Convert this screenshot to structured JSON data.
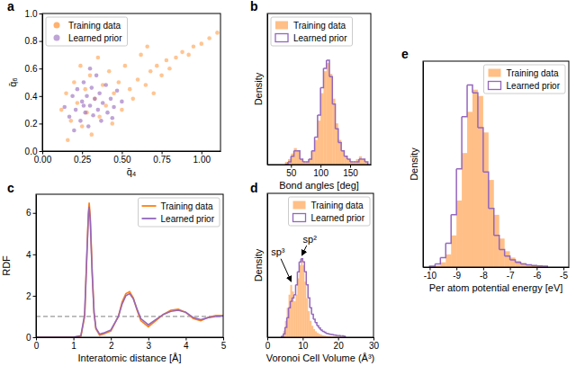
{
  "chart_data": [
    {
      "title": "a",
      "type": "scatter",
      "xlabel": "q̄₄",
      "ylabel": "q̄₆",
      "xlim": [
        0,
        1.12
      ],
      "ylim": [
        0,
        1.0
      ],
      "xticks": [
        {
          "value": 0,
          "label": "0.00"
        },
        0.25,
        {
          "value": 0.5,
          "label": "0.50"
        },
        0.75,
        {
          "value": 1,
          "label": "1.00"
        }
      ],
      "yticks": [
        {
          "value": 0,
          "label": "0.0"
        },
        0.2,
        0.4,
        0.6,
        0.8,
        {
          "value": 1,
          "label": "1.0"
        }
      ],
      "legend": "upper left",
      "series": [
        {
          "name": "Training data",
          "color": "#ff7f0e",
          "x": [
            0.12,
            0.15,
            0.18,
            0.2,
            0.22,
            0.24,
            0.25,
            0.27,
            0.28,
            0.3,
            0.31,
            0.33,
            0.35,
            0.36,
            0.38,
            0.4,
            0.42,
            0.44,
            0.45,
            0.48,
            0.5,
            0.52,
            0.55,
            0.57,
            0.6,
            0.62,
            0.65,
            0.68,
            0.7,
            0.72,
            0.75,
            0.78,
            0.8,
            0.84,
            0.88,
            0.92,
            0.95,
            1.0,
            1.05,
            1.1,
            0.16,
            0.66
          ],
          "values": [
            0.3,
            0.42,
            0.22,
            0.5,
            0.35,
            0.62,
            0.18,
            0.45,
            0.28,
            0.55,
            0.12,
            0.38,
            0.68,
            0.25,
            0.48,
            0.33,
            0.58,
            0.2,
            0.42,
            0.5,
            0.3,
            0.62,
            0.45,
            0.38,
            0.52,
            0.7,
            0.48,
            0.58,
            0.42,
            0.62,
            0.55,
            0.66,
            0.6,
            0.68,
            0.72,
            0.7,
            0.76,
            0.78,
            0.82,
            0.86,
            0.08,
            0.76
          ]
        },
        {
          "name": "Learned prior",
          "color": "#9467bd",
          "x": [
            0.14,
            0.17,
            0.19,
            0.21,
            0.22,
            0.24,
            0.25,
            0.26,
            0.27,
            0.28,
            0.29,
            0.3,
            0.31,
            0.32,
            0.33,
            0.34,
            0.35,
            0.36,
            0.37,
            0.38,
            0.4,
            0.41,
            0.43,
            0.45,
            0.47,
            0.5,
            0.2,
            0.3,
            0.44,
            0.26
          ],
          "values": [
            0.32,
            0.25,
            0.4,
            0.3,
            0.45,
            0.22,
            0.36,
            0.5,
            0.28,
            0.4,
            0.18,
            0.33,
            0.46,
            0.26,
            0.38,
            0.55,
            0.3,
            0.42,
            0.22,
            0.35,
            0.48,
            0.28,
            0.38,
            0.32,
            0.44,
            0.36,
            0.15,
            0.6,
            0.24,
            0.33
          ]
        }
      ]
    },
    {
      "title": "b",
      "type": "histogram",
      "xlabel": "Bond angles [deg]",
      "ylabel": "Density",
      "xlim": [
        10,
        185
      ],
      "ylim": [
        0,
        0.055
      ],
      "xticks": [
        50,
        100,
        150
      ],
      "tick_labels": "x",
      "legend": "upper left",
      "bins": [
        40,
        45,
        50,
        55,
        60,
        65,
        70,
        75,
        80,
        85,
        90,
        95,
        100,
        105,
        110,
        115,
        120,
        125,
        130,
        135,
        140,
        145,
        150,
        155,
        160,
        165,
        170,
        175,
        180
      ],
      "series": [
        {
          "name": "Training data",
          "color": "#ff7f0e",
          "type": "bar",
          "values": [
            0.001,
            0.002,
            0.004,
            0.006,
            0.005,
            0.002,
            0.001,
            0.001,
            0.002,
            0.005,
            0.009,
            0.016,
            0.026,
            0.034,
            0.037,
            0.033,
            0.024,
            0.015,
            0.009,
            0.005,
            0.003,
            0.002,
            0.001,
            0.001,
            0.002,
            0.003,
            0.002,
            0.001
          ]
        },
        {
          "name": "Learned prior",
          "color": "#9467bd",
          "type": "step",
          "values": [
            0.0,
            0.001,
            0.003,
            0.005,
            0.005,
            0.002,
            0.001,
            0.001,
            0.002,
            0.005,
            0.01,
            0.018,
            0.028,
            0.035,
            0.038,
            0.032,
            0.022,
            0.013,
            0.008,
            0.005,
            0.003,
            0.002,
            0.001,
            0.001,
            0.001,
            0.002,
            0.002,
            0.001
          ]
        }
      ]
    },
    {
      "title": "c",
      "type": "line",
      "xlabel": "Interatomic distance [Å]",
      "ylabel": "RDF",
      "xlim": [
        0,
        5
      ],
      "ylim": [
        0,
        6.9
      ],
      "xticks": [
        0,
        1,
        2,
        3,
        4,
        5
      ],
      "yticks": [
        0,
        2,
        4,
        6
      ],
      "reference_line": 1,
      "legend": "upper right",
      "x": [
        0,
        0.5,
        1.0,
        1.2,
        1.3,
        1.35,
        1.4,
        1.42,
        1.45,
        1.5,
        1.55,
        1.6,
        1.7,
        1.8,
        2.0,
        2.2,
        2.3,
        2.4,
        2.5,
        2.6,
        2.7,
        2.8,
        3.0,
        3.2,
        3.4,
        3.6,
        3.8,
        4.0,
        4.2,
        4.4,
        4.6,
        4.8,
        5.0
      ],
      "series": [
        {
          "name": "Training data",
          "color": "#ff7f0e",
          "values": [
            0,
            0,
            0,
            0.05,
            1.0,
            3.5,
            6.0,
            6.5,
            5.8,
            3.2,
            1.2,
            0.4,
            0.1,
            0.15,
            0.3,
            1.0,
            1.7,
            2.1,
            2.2,
            1.9,
            1.3,
            0.8,
            0.5,
            0.8,
            1.1,
            1.3,
            1.35,
            1.2,
            0.9,
            0.8,
            0.95,
            1.05,
            1.05
          ]
        },
        {
          "name": "Learned prior",
          "color": "#9467bd",
          "values": [
            0,
            0,
            0,
            0.08,
            1.1,
            3.6,
            5.9,
            6.3,
            5.6,
            3.1,
            1.2,
            0.45,
            0.15,
            0.2,
            0.35,
            1.0,
            1.6,
            2.0,
            2.1,
            1.85,
            1.35,
            0.9,
            0.6,
            0.85,
            1.1,
            1.25,
            1.3,
            1.2,
            0.95,
            0.85,
            0.95,
            1.0,
            1.02
          ]
        }
      ]
    },
    {
      "title": "d",
      "type": "histogram",
      "xlabel": "Voronoi Cell Volume (Å³)",
      "ylabel": "Density",
      "xlim": [
        0,
        30
      ],
      "ylim": [
        0,
        0.44
      ],
      "xticks": [
        0,
        10,
        20,
        30
      ],
      "tick_labels": "x",
      "legend": "upper right",
      "annotations": [
        {
          "text": "sp³",
          "xy": [
            6.75,
            0.17
          ],
          "xytext": [
            3,
            0.26
          ]
        },
        {
          "text": "sp²",
          "xy": [
            9.75,
            0.25
          ],
          "xytext": [
            12,
            0.3
          ]
        }
      ],
      "bins": [
        4,
        4.5,
        5,
        5.5,
        6,
        6.5,
        7,
        7.5,
        8,
        8.5,
        9,
        9.5,
        10,
        10.5,
        11,
        11.5,
        12,
        12.5,
        13,
        13.5,
        14,
        14.5,
        15,
        15.5,
        16,
        16.5,
        17,
        17.5,
        18,
        18.5,
        19,
        19.5,
        20,
        20.5,
        21,
        21.5,
        22
      ],
      "series": [
        {
          "name": "Training data",
          "color": "#ff7f0e",
          "type": "bar",
          "values": [
            0.005,
            0.02,
            0.05,
            0.09,
            0.13,
            0.16,
            0.14,
            0.11,
            0.13,
            0.18,
            0.22,
            0.24,
            0.22,
            0.17,
            0.12,
            0.08,
            0.05,
            0.035,
            0.025,
            0.018,
            0.013,
            0.01,
            0.008,
            0.006,
            0.005,
            0.004,
            0.003,
            0.003,
            0.002,
            0.002,
            0.002,
            0.001,
            0.001,
            0.001,
            0.001,
            0.001
          ]
        },
        {
          "name": "Learned prior",
          "color": "#9467bd",
          "type": "step",
          "values": [
            0.002,
            0.01,
            0.03,
            0.06,
            0.09,
            0.11,
            0.12,
            0.13,
            0.16,
            0.2,
            0.23,
            0.24,
            0.23,
            0.2,
            0.16,
            0.12,
            0.09,
            0.07,
            0.055,
            0.045,
            0.035,
            0.028,
            0.022,
            0.018,
            0.015,
            0.012,
            0.01,
            0.009,
            0.008,
            0.007,
            0.006,
            0.005,
            0.005,
            0.004,
            0.004,
            0.003
          ]
        }
      ]
    },
    {
      "title": "e",
      "type": "histogram",
      "xlabel": "Per atom potential energy [eV]",
      "ylabel": "Density",
      "xlim": [
        -10.25,
        -4.8
      ],
      "ylim": [
        0,
        1.3
      ],
      "xticks": [
        -10,
        -9,
        -8,
        -7,
        -6,
        -5
      ],
      "tick_labels": "x",
      "legend": "upper right",
      "bins": [
        -10,
        -9.8,
        -9.6,
        -9.4,
        -9.2,
        -9,
        -8.8,
        -8.6,
        -8.4,
        -8.2,
        -8,
        -7.8,
        -7.6,
        -7.4,
        -7.2,
        -7,
        -6.8,
        -6.6,
        -6.4,
        -6.2,
        -6,
        -5.8,
        -5.6
      ],
      "series": [
        {
          "name": "Training data",
          "color": "#ff7f0e",
          "type": "bar",
          "values": [
            0.002,
            0.01,
            0.03,
            0.08,
            0.2,
            0.42,
            0.72,
            0.98,
            1.12,
            1.08,
            0.85,
            0.55,
            0.33,
            0.18,
            0.1,
            0.06,
            0.04,
            0.025,
            0.015,
            0.01,
            0.005,
            0.002
          ]
        },
        {
          "name": "Learned prior",
          "color": "#9467bd",
          "type": "step",
          "values": [
            0.005,
            0.02,
            0.06,
            0.15,
            0.33,
            0.62,
            0.95,
            1.15,
            1.1,
            0.88,
            0.6,
            0.37,
            0.2,
            0.11,
            0.07,
            0.045,
            0.03,
            0.02,
            0.014,
            0.01,
            0.007,
            0.005
          ]
        }
      ]
    }
  ]
}
